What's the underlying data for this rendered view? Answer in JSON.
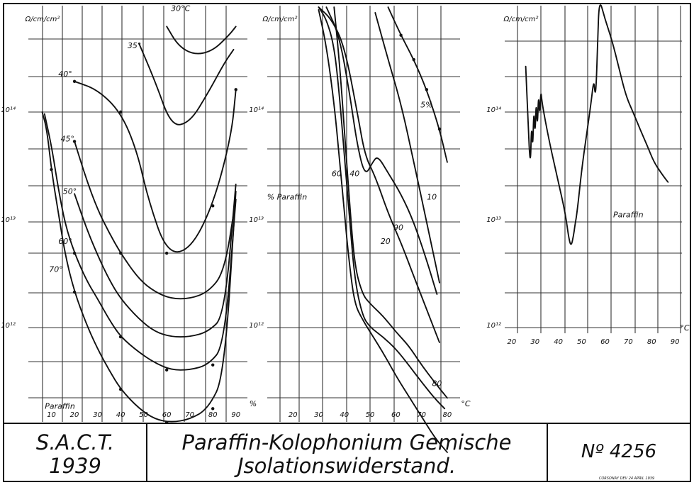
{
  "title_block": {
    "org": "S.A.C.T.",
    "year": "1939",
    "title_line1": "Paraffin-Kolophonium Gemische",
    "title_line2": "Jsolationswiderstand.",
    "number": "Nº 4256",
    "credit": "CORSONAY DEV 24 APRIL 1939"
  },
  "chart_data": [
    {
      "type": "line",
      "y_unit_label": "Ω/cm/cm²",
      "y_scale": "log",
      "ylim": [
        100000000000.0,
        1000000000000000.0
      ],
      "y_ticks": [
        {
          "value": 1000000000000.0,
          "label": "10¹²"
        },
        {
          "value": 10000000000000.0,
          "label": "10¹³"
        },
        {
          "value": 100000000000000.0,
          "label": "10¹⁴"
        }
      ],
      "xlim": [
        0,
        95
      ],
      "x_ticks": [
        10,
        20,
        30,
        40,
        50,
        60,
        70,
        80,
        90
      ],
      "x_unit_label": "%",
      "bottom_label": "Paraffin",
      "grid": true,
      "series": [
        {
          "name": "30°C",
          "label_at": [
            66,
            830000000000000.0
          ],
          "x": [
            60,
            65,
            72,
            80,
            87,
            90
          ],
          "y": [
            600000000000000.0,
            400000000000000.0,
            330000000000000.0,
            360000000000000.0,
            500000000000000.0,
            600000000000000.0
          ]
        },
        {
          "name": "35°",
          "label_at": [
            46,
            380000000000000.0
          ],
          "x": [
            48,
            55,
            62,
            70,
            78,
            85,
            89
          ],
          "y": [
            420000000000000.0,
            190000000000000.0,
            74000000000000.0,
            80000000000000.0,
            150000000000000.0,
            280000000000000.0,
            370000000000000.0
          ]
        },
        {
          "name": "40°",
          "label_at": [
            16,
            210000000000000.0
          ],
          "x": [
            20,
            30,
            40,
            47,
            52,
            60,
            70,
            80,
            88,
            90
          ],
          "y": [
            190000000000000.0,
            160000000000000.0,
            100000000000000.0,
            45000000000000.0,
            16000000000000.0,
            5200000000000.0,
            5500000000000.0,
            14000000000000.0,
            60000000000000.0,
            160000000000000.0
          ],
          "points_x": [
            20,
            40,
            60,
            80,
            90
          ],
          "points_y": [
            190000000000000.0,
            100000000000000.0,
            5200000000000.0,
            14000000000000.0,
            160000000000000.0
          ]
        },
        {
          "name": "45°",
          "label_at": [
            17,
            54000000000000.0
          ],
          "x": [
            20,
            25,
            30,
            35,
            40,
            48,
            55,
            62,
            70,
            78,
            85,
            90
          ],
          "y": [
            54000000000000.0,
            25000000000000.0,
            13000000000000.0,
            8000000000000.0,
            5200000000000.0,
            3000000000000.0,
            2300000000000.0,
            2000000000000.0,
            2000000000000.0,
            2300000000000.0,
            3500000000000.0,
            16000000000000.0
          ],
          "points_x": [
            20,
            40
          ],
          "points_y": [
            54000000000000.0,
            5200000000000.0
          ]
        },
        {
          "name": "50°",
          "label_at": [
            18,
            18000000000000.0
          ],
          "x": [
            20,
            25,
            30,
            35,
            40,
            48,
            55,
            62,
            70,
            78,
            85,
            90
          ],
          "y": [
            18000000000000.0,
            9000000000000.0,
            5000000000000.0,
            3000000000000.0,
            2000000000000.0,
            1300000000000.0,
            1000000000000.0,
            900000000000.0,
            900000000000.0,
            1000000000000.0,
            1400000000000.0,
            22000000000000.0
          ]
        },
        {
          "name": "60°",
          "label_at": [
            16,
            6300000000000.0
          ],
          "x": [
            7,
            10,
            13,
            16,
            20,
            25,
            30,
            35,
            40,
            48,
            55,
            62,
            70,
            78,
            85,
            90
          ],
          "y": [
            96000000000000.0,
            50000000000000.0,
            20000000000000.0,
            9500000000000.0,
            5200000000000.0,
            3000000000000.0,
            2000000000000.0,
            1300000000000.0,
            900000000000.0,
            650000000000.0,
            520000000000.0,
            450000000000.0,
            450000000000.0,
            500000000000.0,
            750000000000.0,
            16000000000000.0
          ],
          "points_x": [
            20,
            40,
            60,
            80
          ],
          "points_y": [
            5200000000000.0,
            900000000000.0,
            450000000000.0,
            500000000000.0
          ]
        },
        {
          "name": "70°",
          "label_at": [
            12,
            3500000000000.0
          ],
          "x": [
            6,
            8,
            10,
            13,
            16,
            20,
            25,
            30,
            35,
            40,
            48,
            55,
            62,
            70,
            78,
            85,
            90
          ],
          "y": [
            100000000000000.0,
            70000000000000.0,
            30000000000000.0,
            12000000000000.0,
            5000000000000.0,
            2300000000000.0,
            1200000000000.0,
            700000000000.0,
            450000000000.0,
            300000000000.0,
            200000000000.0,
            160000000000.0,
            150000000000.0,
            160000000000.0,
            200000000000.0,
            400000000000.0,
            19000000000000.0
          ],
          "points_x": [
            10,
            20,
            40,
            60,
            80
          ],
          "points_y": [
            30000000000000.0,
            2300000000000.0,
            300000000000.0,
            150000000000.0,
            200000000000.0
          ]
        }
      ]
    },
    {
      "type": "line",
      "y_unit_label": "Ω/cm/cm²",
      "y_scale": "log",
      "ylim": [
        100000000000.0,
        1000000000000000.0
      ],
      "y_ticks": [
        {
          "value": 1000000000000.0,
          "label": "10¹²"
        },
        {
          "value": 10000000000000.0,
          "label": "10¹³"
        },
        {
          "value": 100000000000000.0,
          "label": "10¹⁴"
        }
      ],
      "xlim": [
        10,
        85
      ],
      "x_ticks": [
        20,
        30,
        40,
        50,
        60,
        70,
        80
      ],
      "x_unit_label": "°C",
      "legend_title": "% Paraffin",
      "grid": true,
      "series": [
        {
          "name": "5%",
          "label_at": [
            72,
            110000000000000.0
          ],
          "x": [
            57,
            62,
            67,
            72,
            77,
            80
          ],
          "y": [
            900000000000000.0,
            500000000000000.0,
            300000000000000.0,
            160000000000000.0,
            70000000000000.0,
            35000000000000.0
          ],
          "points_x": [
            62,
            67,
            72,
            77
          ],
          "points_y": [
            500000000000000.0,
            300000000000000.0,
            160000000000000.0,
            70000000000000.0
          ]
        },
        {
          "name": "10",
          "label_at": [
            74,
            16000000000000.0
          ],
          "x": [
            52,
            57,
            62,
            67,
            72,
            77
          ],
          "y": [
            800000000000000.0,
            300000000000000.0,
            120000000000000.0,
            35000000000000.0,
            10000000000000.0,
            2800000000000.0
          ]
        },
        {
          "name": "20",
          "label_at": [
            56,
            6300000000000.0
          ],
          "x": [
            30,
            35,
            40,
            45,
            48,
            52,
            57,
            62,
            67,
            72,
            77
          ],
          "y": [
            900000000000000.0,
            700000000000000.0,
            400000000000000.0,
            100000000000000.0,
            40000000000000.0,
            26000000000000.0,
            12000000000000.0,
            6500000000000.0,
            3200000000000.0,
            1600000000000.0,
            800000000000.0
          ]
        },
        {
          "name": "90",
          "label_at": [
            61,
            8400000000000.0
          ],
          "x": [
            33,
            38,
            42,
            45,
            48,
            51,
            53,
            57,
            62,
            67,
            72,
            76
          ],
          "y": [
            900000000000000.0,
            500000000000000.0,
            150000000000000.0,
            50000000000000.0,
            26000000000000.0,
            35000000000000.0,
            40000000000000.0,
            28000000000000.0,
            18000000000000.0,
            10000000000000.0,
            4500000000000.0,
            2200000000000.0
          ]
        },
        {
          "name": "40",
          "label_at": [
            44,
            26000000000000.0
          ],
          "x": [
            30,
            33,
            36,
            38,
            40,
            42,
            44,
            47,
            50,
            55,
            60,
            65,
            70,
            75,
            79
          ],
          "y": [
            900000000000000.0,
            700000000000000.0,
            400000000000000.0,
            150000000000000.0,
            40000000000000.0,
            11000000000000.0,
            3000000000000.0,
            1400000000000.0,
            1100000000000.0,
            900000000000.0,
            700000000000.0,
            500000000000.0,
            350000000000.0,
            250000000000.0,
            200000000000.0
          ]
        },
        {
          "name": "60",
          "label_at": [
            37,
            26000000000000.0
          ],
          "x": [
            30,
            33,
            36,
            38,
            40,
            42,
            44,
            47,
            50,
            55,
            60,
            65,
            70,
            75,
            80
          ],
          "y": [
            850000000000000.0,
            400000000000000.0,
            120000000000000.0,
            40000000000000.0,
            12000000000000.0,
            4000000000000.0,
            1800000000000.0,
            1300000000000.0,
            1000000000000.0,
            650000000000.0,
            400000000000.0,
            260000000000.0,
            170000000000.0,
            110000000000.0,
            80000000000.0
          ]
        },
        {
          "name": "80",
          "label_at": [
            76,
            320000000000.0
          ],
          "x": [
            36,
            38,
            40,
            42,
            44,
            47,
            50,
            55,
            60,
            65,
            70,
            75,
            80
          ],
          "y": [
            900000000000000.0,
            300000000000000.0,
            70000000000000.0,
            15000000000000.0,
            4000000000000.0,
            2200000000000.0,
            1800000000000.0,
            1400000000000.0,
            1000000000000.0,
            750000000000.0,
            500000000000.0,
            350000000000.0,
            250000000000.0
          ]
        }
      ]
    },
    {
      "type": "line",
      "y_unit_label": "Ω/cm/cm²",
      "y_scale": "log",
      "ylim": [
        1000000000000.0,
        1000000000000000.0
      ],
      "y_ticks": [
        {
          "value": 1000000000000.0,
          "label": "10¹²"
        },
        {
          "value": 10000000000000.0,
          "label": "10¹³"
        },
        {
          "value": 100000000000000.0,
          "label": "10¹⁴"
        }
      ],
      "xlim": [
        17,
        93
      ],
      "x_ticks": [
        20,
        30,
        40,
        50,
        60,
        70,
        80,
        90
      ],
      "x_unit_label": "°C",
      "annotation": "Paraffin",
      "grid": true,
      "series": [
        {
          "name": "",
          "x": [
            26,
            27,
            28,
            28.5,
            29,
            29.5,
            30,
            30.5,
            31,
            31.5,
            32,
            32.5,
            33,
            36,
            40,
            43,
            44.5,
            45.5,
            46.5,
            47,
            48,
            50,
            52,
            54,
            55.2,
            55.8,
            56.3,
            56.8,
            57.5,
            60,
            63,
            66,
            69,
            72,
            75,
            78,
            81,
            84,
            87
          ],
          "y": [
            260000000000000.0,
            80000000000000.0,
            30000000000000.0,
            80000000000000.0,
            45000000000000.0,
            110000000000000.0,
            60000000000000.0,
            130000000000000.0,
            70000000000000.0,
            150000000000000.0,
            90000000000000.0,
            160000000000000.0,
            120000000000000.0,
            55000000000000.0,
            23000000000000.0,
            12000000000000.0,
            7000000000000.0,
            6000000000000.0,
            7500000000000.0,
            9000000000000.0,
            12000000000000.0,
            30000000000000.0,
            60000000000000.0,
            120000000000000.0,
            200000000000000.0,
            140000000000000.0,
            190000000000000.0,
            400000000000000.0,
            1100000000000000.0,
            700000000000000.0,
            450000000000000.0,
            250000000000000.0,
            140000000000000.0,
            100000000000000.0,
            70000000000000.0,
            50000000000000.0,
            35000000000000.0,
            28000000000000.0,
            23000000000000.0
          ]
        }
      ]
    }
  ]
}
